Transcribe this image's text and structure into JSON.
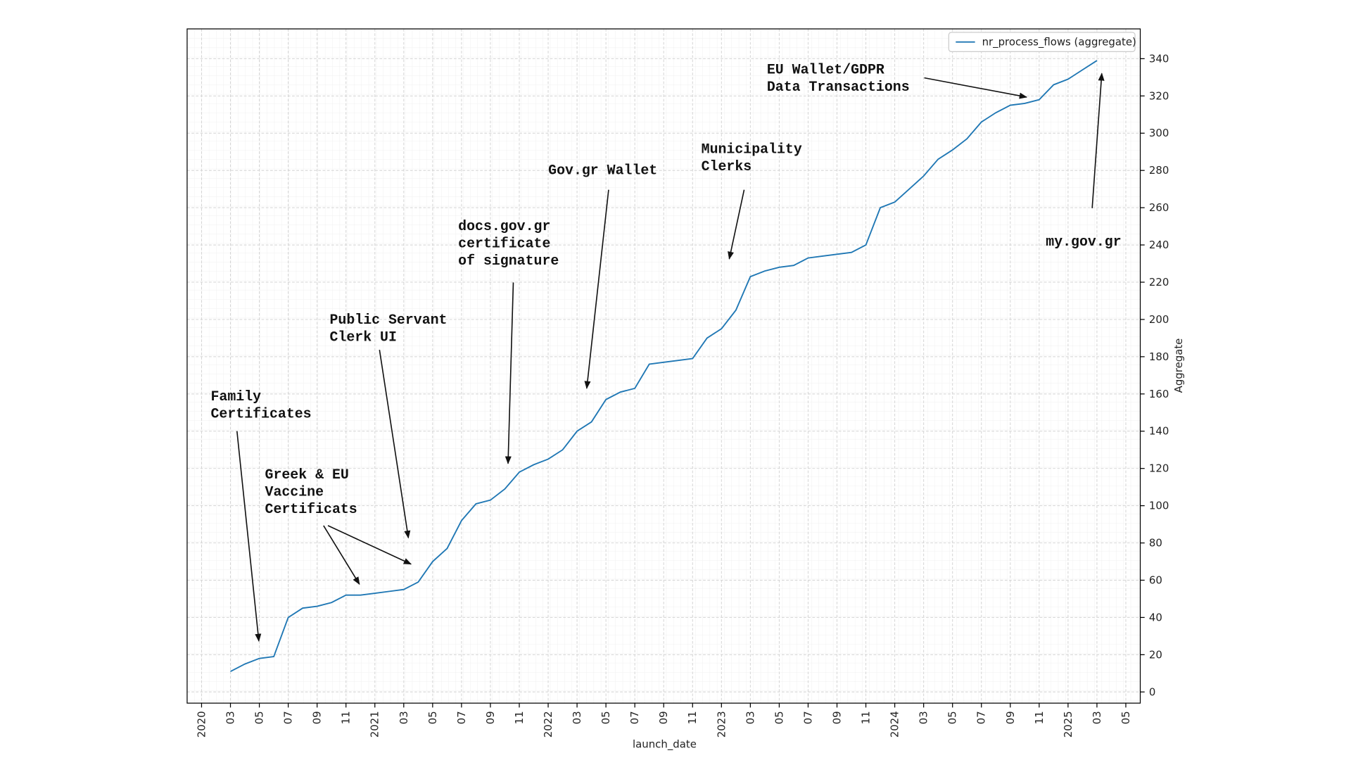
{
  "chart_data": {
    "type": "line",
    "x_label": "launch_date",
    "y_label": "Aggregate",
    "x": [
      "2020-03",
      "2020-04",
      "2020-05",
      "2020-06",
      "2020-07",
      "2020-08",
      "2020-09",
      "2020-10",
      "2020-11",
      "2020-12",
      "2021-01",
      "2021-02",
      "2021-03",
      "2021-04",
      "2021-05",
      "2021-06",
      "2021-07",
      "2021-08",
      "2021-09",
      "2021-10",
      "2021-11",
      "2021-12",
      "2022-01",
      "2022-02",
      "2022-03",
      "2022-04",
      "2022-05",
      "2022-06",
      "2022-07",
      "2022-08",
      "2022-09",
      "2022-10",
      "2022-11",
      "2022-12",
      "2023-01",
      "2023-02",
      "2023-03",
      "2023-04",
      "2023-05",
      "2023-06",
      "2023-07",
      "2023-08",
      "2023-09",
      "2023-10",
      "2023-11",
      "2023-12",
      "2024-01",
      "2024-02",
      "2024-03",
      "2024-04",
      "2024-05",
      "2024-06",
      "2024-07",
      "2024-08",
      "2024-09",
      "2024-10",
      "2024-11",
      "2024-12",
      "2025-01",
      "2025-02",
      "2025-03"
    ],
    "series": [
      {
        "name": "nr_process_flows (aggregate)",
        "color": "#1f77b4",
        "values": [
          11,
          15,
          18,
          19,
          40,
          45,
          46,
          48,
          52,
          52,
          53,
          54,
          55,
          59,
          70,
          77,
          92,
          101,
          103,
          109,
          118,
          122,
          125,
          130,
          140,
          145,
          157,
          161,
          163,
          176,
          177,
          178,
          179,
          190,
          195,
          205,
          223,
          226,
          228,
          229,
          233,
          234,
          235,
          236,
          240,
          260,
          263,
          270,
          277,
          286,
          291,
          297,
          306,
          311,
          315,
          316,
          318,
          326,
          329,
          334,
          339
        ]
      }
    ],
    "xlim": [
      "2019-12",
      "2025-06"
    ],
    "xticks": [
      {
        "value": "2020-01",
        "label": "2020"
      },
      {
        "value": "2020-03",
        "label": "03"
      },
      {
        "value": "2020-05",
        "label": "05"
      },
      {
        "value": "2020-07",
        "label": "07"
      },
      {
        "value": "2020-09",
        "label": "09"
      },
      {
        "value": "2020-11",
        "label": "11"
      },
      {
        "value": "2021-01",
        "label": "2021"
      },
      {
        "value": "2021-03",
        "label": "03"
      },
      {
        "value": "2021-05",
        "label": "05"
      },
      {
        "value": "2021-07",
        "label": "07"
      },
      {
        "value": "2021-09",
        "label": "09"
      },
      {
        "value": "2021-11",
        "label": "11"
      },
      {
        "value": "2022-01",
        "label": "2022"
      },
      {
        "value": "2022-03",
        "label": "03"
      },
      {
        "value": "2022-05",
        "label": "05"
      },
      {
        "value": "2022-07",
        "label": "07"
      },
      {
        "value": "2022-09",
        "label": "09"
      },
      {
        "value": "2022-11",
        "label": "11"
      },
      {
        "value": "2023-01",
        "label": "2023"
      },
      {
        "value": "2023-03",
        "label": "03"
      },
      {
        "value": "2023-05",
        "label": "05"
      },
      {
        "value": "2023-07",
        "label": "07"
      },
      {
        "value": "2023-09",
        "label": "09"
      },
      {
        "value": "2023-11",
        "label": "11"
      },
      {
        "value": "2024-01",
        "label": "2024"
      },
      {
        "value": "2024-03",
        "label": "03"
      },
      {
        "value": "2024-05",
        "label": "05"
      },
      {
        "value": "2024-07",
        "label": "07"
      },
      {
        "value": "2024-09",
        "label": "09"
      },
      {
        "value": "2024-11",
        "label": "11"
      },
      {
        "value": "2025-01",
        "label": "2025"
      },
      {
        "value": "2025-03",
        "label": "03"
      },
      {
        "value": "2025-05",
        "label": "05"
      }
    ],
    "ylim": [
      -6,
      356
    ],
    "yticks": [
      0,
      20,
      40,
      60,
      80,
      100,
      120,
      140,
      160,
      180,
      200,
      220,
      240,
      260,
      280,
      300,
      320,
      340
    ],
    "y_axis_side": "right",
    "grid": true,
    "legend": "upper right",
    "annotations": [
      {
        "text": [
          "Family",
          "Certificates"
        ]
      },
      {
        "text": [
          "Greek & EU",
          "Vaccine",
          "Certificats"
        ]
      },
      {
        "text": [
          "Public Servant",
          "Clerk UI"
        ]
      },
      {
        "text": [
          "docs.gov.gr",
          "certificate",
          "of signature"
        ]
      },
      {
        "text": [
          "Gov.gr Wallet"
        ]
      },
      {
        "text": [
          "Municipality",
          "Clerks"
        ]
      },
      {
        "text": [
          "EU Wallet/GDPR",
          "Data Transactions"
        ]
      },
      {
        "text": [
          "my.gov.gr"
        ]
      }
    ]
  }
}
